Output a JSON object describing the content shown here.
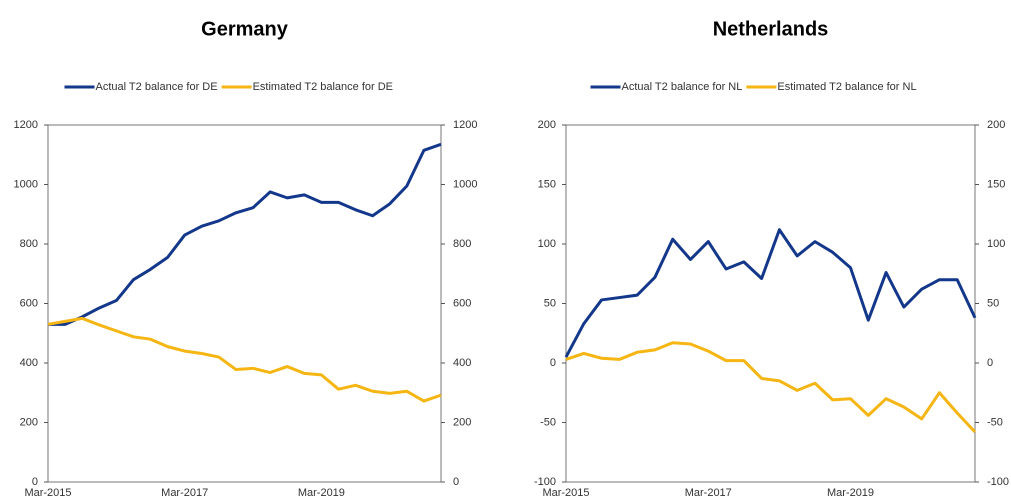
{
  "chart_data": [
    {
      "type": "line",
      "title": "Germany",
      "categories": [
        "Mar-2015",
        null,
        null,
        null,
        null,
        null,
        null,
        null,
        "Mar-2017",
        null,
        null,
        null,
        null,
        null,
        null,
        null,
        "Mar-2019",
        null,
        null,
        null,
        null,
        null,
        null,
        null
      ],
      "series": [
        {
          "name": "Actual T2 balance for DE",
          "color": "#13378a",
          "values": [
            530,
            530,
            555,
            585,
            610,
            680,
            715,
            755,
            830,
            860,
            878,
            905,
            922,
            975,
            955,
            965,
            940,
            940,
            915,
            895,
            935,
            995,
            1115,
            1135
          ]
        },
        {
          "name": "Estimated T2 balance for DE",
          "color": "#f5b512",
          "values": [
            530,
            540,
            550,
            528,
            508,
            488,
            480,
            455,
            440,
            432,
            420,
            378,
            382,
            368,
            388,
            365,
            360,
            312,
            325,
            305,
            298,
            305,
            272,
            292
          ]
        }
      ],
      "ylim": [
        0,
        1200
      ],
      "yticks": [
        0,
        200,
        400,
        600,
        800,
        1000,
        1200
      ],
      "y2lim": [
        0,
        1200
      ],
      "y2ticks": [
        0,
        200,
        400,
        600,
        800,
        1000,
        1200
      ]
    },
    {
      "type": "line",
      "title": "Netherlands",
      "categories": [
        "Mar-2015",
        null,
        null,
        null,
        null,
        null,
        null,
        null,
        "Mar-2017",
        null,
        null,
        null,
        null,
        null,
        null,
        null,
        "Mar-2019",
        null,
        null,
        null,
        null,
        null,
        null,
        null
      ],
      "series": [
        {
          "name": "Actual T2 balance for NL",
          "color": "#13378a",
          "values": [
            5,
            33,
            53,
            55,
            57,
            72,
            104,
            87,
            102,
            79,
            85,
            71,
            112,
            90,
            102,
            93,
            80,
            36,
            76,
            47,
            62,
            70,
            70,
            38
          ]
        },
        {
          "name": "Estimated T2 balance for NL",
          "color": "#f5b512",
          "values": [
            3,
            8,
            4,
            3,
            9,
            11,
            17,
            16,
            10,
            2,
            2,
            -13,
            -15,
            -23,
            -17,
            -31,
            -30,
            -44,
            -30,
            -37,
            -47,
            -25,
            -42,
            -58
          ]
        }
      ],
      "ylim": [
        -100,
        200
      ],
      "yticks": [
        -100,
        -50,
        0,
        50,
        100,
        150,
        200
      ],
      "y2lim": [
        -100,
        200
      ],
      "y2ticks": [
        -100,
        -50,
        0,
        50,
        100,
        150,
        200
      ]
    }
  ]
}
